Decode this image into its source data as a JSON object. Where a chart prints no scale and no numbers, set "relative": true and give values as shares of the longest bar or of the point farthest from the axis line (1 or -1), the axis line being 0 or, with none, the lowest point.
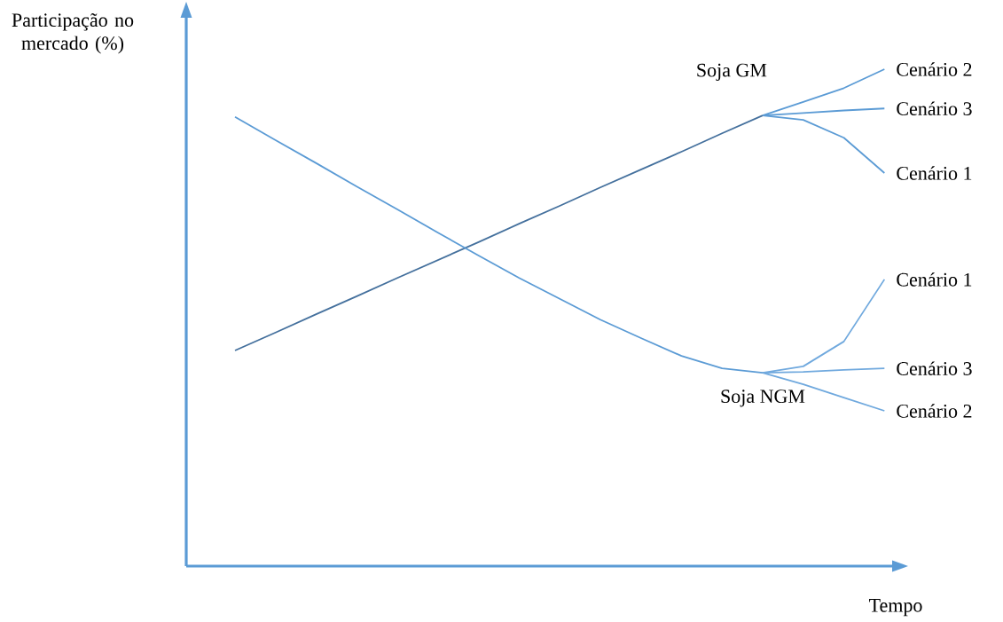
{
  "chart_data": {
    "type": "line",
    "relative": true,
    "marker": "none",
    "xlabel": "Tempo",
    "ylabel": "Participação no mercado (%)",
    "categories": [
      null,
      null,
      null,
      null,
      null,
      null,
      null,
      null,
      null,
      null,
      null,
      null,
      null,
      null,
      null,
      null,
      null
    ],
    "series": [
      {
        "name": "Soja GM",
        "color": "#44709d",
        "values": [
          0.434,
          0.47,
          0.507,
          0.543,
          0.58,
          0.616,
          0.652,
          0.689,
          0.725,
          0.762,
          0.798,
          0.834,
          0.871,
          0.907,
          null,
          null,
          null
        ]
      },
      {
        "name": "Cenário 2",
        "color": "#5b9bd5",
        "values": [
          null,
          null,
          null,
          null,
          null,
          null,
          null,
          null,
          null,
          null,
          null,
          null,
          null,
          0.907,
          0.934,
          0.962,
          1.0
        ]
      },
      {
        "name": "Cenário 3",
        "color": "#5b9bd5",
        "values": [
          null,
          null,
          null,
          null,
          null,
          null,
          null,
          null,
          null,
          null,
          null,
          null,
          null,
          0.907,
          0.912,
          0.917,
          0.921
        ]
      },
      {
        "name": "Cenário 1",
        "color": "#5b9bd5",
        "values": [
          null,
          null,
          null,
          null,
          null,
          null,
          null,
          null,
          null,
          null,
          null,
          null,
          null,
          0.907,
          0.898,
          0.862,
          0.791
        ]
      },
      {
        "name": "Soja NGM",
        "color": "#5b9bd5",
        "values": [
          0.904,
          0.857,
          0.811,
          0.764,
          0.718,
          0.671,
          0.625,
          0.58,
          0.538,
          0.496,
          0.459,
          0.423,
          0.398,
          0.389,
          null,
          null,
          null
        ]
      },
      {
        "name": "Cenário 1",
        "color": "#70a9de",
        "values": [
          null,
          null,
          null,
          null,
          null,
          null,
          null,
          null,
          null,
          null,
          null,
          null,
          null,
          0.389,
          0.402,
          0.452,
          0.577
        ]
      },
      {
        "name": "Cenário 3",
        "color": "#70a9de",
        "values": [
          null,
          null,
          null,
          null,
          null,
          null,
          null,
          null,
          null,
          null,
          null,
          null,
          null,
          0.389,
          0.391,
          0.395,
          0.398
        ]
      },
      {
        "name": "Cenário 2",
        "color": "#70a9de",
        "values": [
          null,
          null,
          null,
          null,
          null,
          null,
          null,
          null,
          null,
          null,
          null,
          null,
          null,
          0.389,
          0.366,
          0.339,
          0.3125
        ]
      }
    ]
  }
}
